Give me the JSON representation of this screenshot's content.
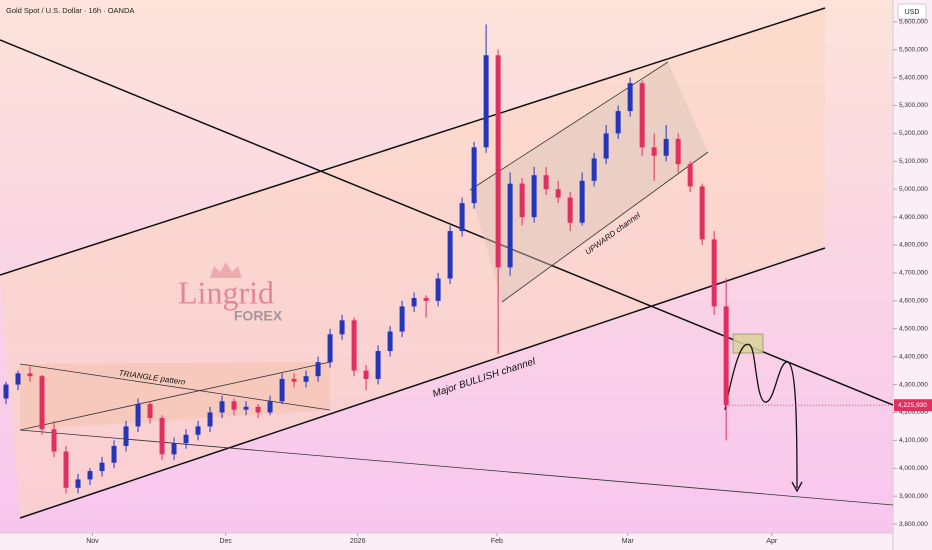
{
  "chart_data": {
    "type": "candlestick",
    "title": "Gold Spot / U.S. Dollar · 16h · OANDA",
    "currency": "USD",
    "up_color": "#2337b8",
    "down_color": "#e0305f",
    "candles": [
      {
        "o": 4250000,
        "h": 4310000,
        "l": 4230000,
        "c": 4300000
      },
      {
        "o": 4300000,
        "h": 4350000,
        "l": 4280000,
        "c": 4340000
      },
      {
        "o": 4340000,
        "h": 4365000,
        "l": 4310000,
        "c": 4330000
      },
      {
        "o": 4330000,
        "h": 4335000,
        "l": 4120000,
        "c": 4140000
      },
      {
        "o": 4140000,
        "h": 4170000,
        "l": 4040000,
        "c": 4060000
      },
      {
        "o": 4060000,
        "h": 4080000,
        "l": 3910000,
        "c": 3930000
      },
      {
        "o": 3930000,
        "h": 3980000,
        "l": 3910000,
        "c": 3960000
      },
      {
        "o": 3960000,
        "h": 4000000,
        "l": 3940000,
        "c": 3990000
      },
      {
        "o": 3990000,
        "h": 4040000,
        "l": 3970000,
        "c": 4020000
      },
      {
        "o": 4020000,
        "h": 4100000,
        "l": 4000000,
        "c": 4080000
      },
      {
        "o": 4080000,
        "h": 4170000,
        "l": 4060000,
        "c": 4150000
      },
      {
        "o": 4150000,
        "h": 4250000,
        "l": 4130000,
        "c": 4230000
      },
      {
        "o": 4230000,
        "h": 4240000,
        "l": 4160000,
        "c": 4180000
      },
      {
        "o": 4180000,
        "h": 4190000,
        "l": 4030000,
        "c": 4050000
      },
      {
        "o": 4050000,
        "h": 4110000,
        "l": 4030000,
        "c": 4090000
      },
      {
        "o": 4090000,
        "h": 4140000,
        "l": 4070000,
        "c": 4120000
      },
      {
        "o": 4120000,
        "h": 4170000,
        "l": 4100000,
        "c": 4150000
      },
      {
        "o": 4150000,
        "h": 4220000,
        "l": 4130000,
        "c": 4200000
      },
      {
        "o": 4200000,
        "h": 4260000,
        "l": 4180000,
        "c": 4240000
      },
      {
        "o": 4240000,
        "h": 4250000,
        "l": 4190000,
        "c": 4210000
      },
      {
        "o": 4210000,
        "h": 4240000,
        "l": 4190000,
        "c": 4220000
      },
      {
        "o": 4220000,
        "h": 4230000,
        "l": 4180000,
        "c": 4200000
      },
      {
        "o": 4200000,
        "h": 4260000,
        "l": 4190000,
        "c": 4240000
      },
      {
        "o": 4240000,
        "h": 4340000,
        "l": 4230000,
        "c": 4320000
      },
      {
        "o": 4320000,
        "h": 4340000,
        "l": 4290000,
        "c": 4310000
      },
      {
        "o": 4310000,
        "h": 4350000,
        "l": 4290000,
        "c": 4330000
      },
      {
        "o": 4330000,
        "h": 4400000,
        "l": 4310000,
        "c": 4380000
      },
      {
        "o": 4380000,
        "h": 4500000,
        "l": 4360000,
        "c": 4480000
      },
      {
        "o": 4480000,
        "h": 4550000,
        "l": 4460000,
        "c": 4530000
      },
      {
        "o": 4530000,
        "h": 4540000,
        "l": 4330000,
        "c": 4350000
      },
      {
        "o": 4350000,
        "h": 4370000,
        "l": 4280000,
        "c": 4320000
      },
      {
        "o": 4320000,
        "h": 4440000,
        "l": 4300000,
        "c": 4420000
      },
      {
        "o": 4420000,
        "h": 4510000,
        "l": 4400000,
        "c": 4490000
      },
      {
        "o": 4490000,
        "h": 4600000,
        "l": 4470000,
        "c": 4580000
      },
      {
        "o": 4580000,
        "h": 4630000,
        "l": 4560000,
        "c": 4610000
      },
      {
        "o": 4610000,
        "h": 4620000,
        "l": 4540000,
        "c": 4600000
      },
      {
        "o": 4600000,
        "h": 4700000,
        "l": 4580000,
        "c": 4680000
      },
      {
        "o": 4680000,
        "h": 4870000,
        "l": 4660000,
        "c": 4850000
      },
      {
        "o": 4850000,
        "h": 4970000,
        "l": 4830000,
        "c": 4950000
      },
      {
        "o": 4950000,
        "h": 5170000,
        "l": 4930000,
        "c": 5150000
      },
      {
        "o": 5150000,
        "h": 5590000,
        "l": 5130000,
        "c": 5480000
      },
      {
        "o": 5480000,
        "h": 5500000,
        "l": 4410000,
        "c": 4720000
      },
      {
        "o": 4720000,
        "h": 5060000,
        "l": 4690000,
        "c": 5020000
      },
      {
        "o": 5020000,
        "h": 5040000,
        "l": 4870000,
        "c": 4900000
      },
      {
        "o": 4900000,
        "h": 5080000,
        "l": 4880000,
        "c": 5050000
      },
      {
        "o": 5050000,
        "h": 5080000,
        "l": 4980000,
        "c": 5000000
      },
      {
        "o": 5000000,
        "h": 5030000,
        "l": 4950000,
        "c": 4970000
      },
      {
        "o": 4970000,
        "h": 4990000,
        "l": 4850000,
        "c": 4880000
      },
      {
        "o": 4880000,
        "h": 5060000,
        "l": 4870000,
        "c": 5030000
      },
      {
        "o": 5030000,
        "h": 5130000,
        "l": 5010000,
        "c": 5110000
      },
      {
        "o": 5110000,
        "h": 5230000,
        "l": 5090000,
        "c": 5200000
      },
      {
        "o": 5200000,
        "h": 5300000,
        "l": 5180000,
        "c": 5280000
      },
      {
        "o": 5280000,
        "h": 5400000,
        "l": 5260000,
        "c": 5380000
      },
      {
        "o": 5380000,
        "h": 5390000,
        "l": 5120000,
        "c": 5150000
      },
      {
        "o": 5150000,
        "h": 5200000,
        "l": 5030000,
        "c": 5120000
      },
      {
        "o": 5120000,
        "h": 5230000,
        "l": 5100000,
        "c": 5180000
      },
      {
        "o": 5180000,
        "h": 5200000,
        "l": 5060000,
        "c": 5090000
      },
      {
        "o": 5090000,
        "h": 5100000,
        "l": 4990000,
        "c": 5010000
      },
      {
        "o": 5010000,
        "h": 5020000,
        "l": 4800000,
        "c": 4820000
      },
      {
        "o": 4820000,
        "h": 4850000,
        "l": 4550000,
        "c": 4580000
      },
      {
        "o": 4580000,
        "h": 4680000,
        "l": 4100000,
        "c": 4225930
      }
    ],
    "ylim": [
      3768000,
      5678000
    ],
    "yticks": [
      {
        "value": 3800000,
        "label": "3,800,000"
      },
      {
        "value": 3900000,
        "label": "3,900,000"
      },
      {
        "value": 4000000,
        "label": "4,000,000"
      },
      {
        "value": 4100000,
        "label": "4,100,000"
      },
      {
        "value": 4200000,
        "label": "4,200,000"
      },
      {
        "value": 4300000,
        "label": "4,300,000"
      },
      {
        "value": 4400000,
        "label": "4,400,000"
      },
      {
        "value": 4500000,
        "label": "4,500,000"
      },
      {
        "value": 4600000,
        "label": "4,600,000"
      },
      {
        "value": 4700000,
        "label": "4,700,000"
      },
      {
        "value": 4800000,
        "label": "4,800,000"
      },
      {
        "value": 4900000,
        "label": "4,900,000"
      },
      {
        "value": 5000000,
        "label": "5,000,000"
      },
      {
        "value": 5100000,
        "label": "5,100,000"
      },
      {
        "value": 5200000,
        "label": "5,200,000"
      },
      {
        "value": 5300000,
        "label": "5,300,000"
      },
      {
        "value": 5400000,
        "label": "5,400,000"
      },
      {
        "value": 5500000,
        "label": "5,500,000"
      },
      {
        "value": 5600000,
        "label": "5,600,000"
      }
    ],
    "xlim": [
      -0.5,
      73.9
    ],
    "xticks": [
      {
        "value": 7.2,
        "label": "Nov"
      },
      {
        "value": 18.3,
        "label": "Dec"
      },
      {
        "value": 29.3,
        "label": "2026"
      },
      {
        "value": 40.9,
        "label": "Feb"
      },
      {
        "value": 51.8,
        "label": "Mar"
      },
      {
        "value": 63.8,
        "label": "Apr"
      }
    ],
    "last_price": {
      "value": 4225930,
      "label": "4,225,930"
    },
    "annotations": [
      "TRIANGLE pattern",
      "Major BULLISH channel",
      "UPWARD channel"
    ],
    "watermark": {
      "brand": "Lingrid",
      "sub": "FOREX"
    }
  }
}
